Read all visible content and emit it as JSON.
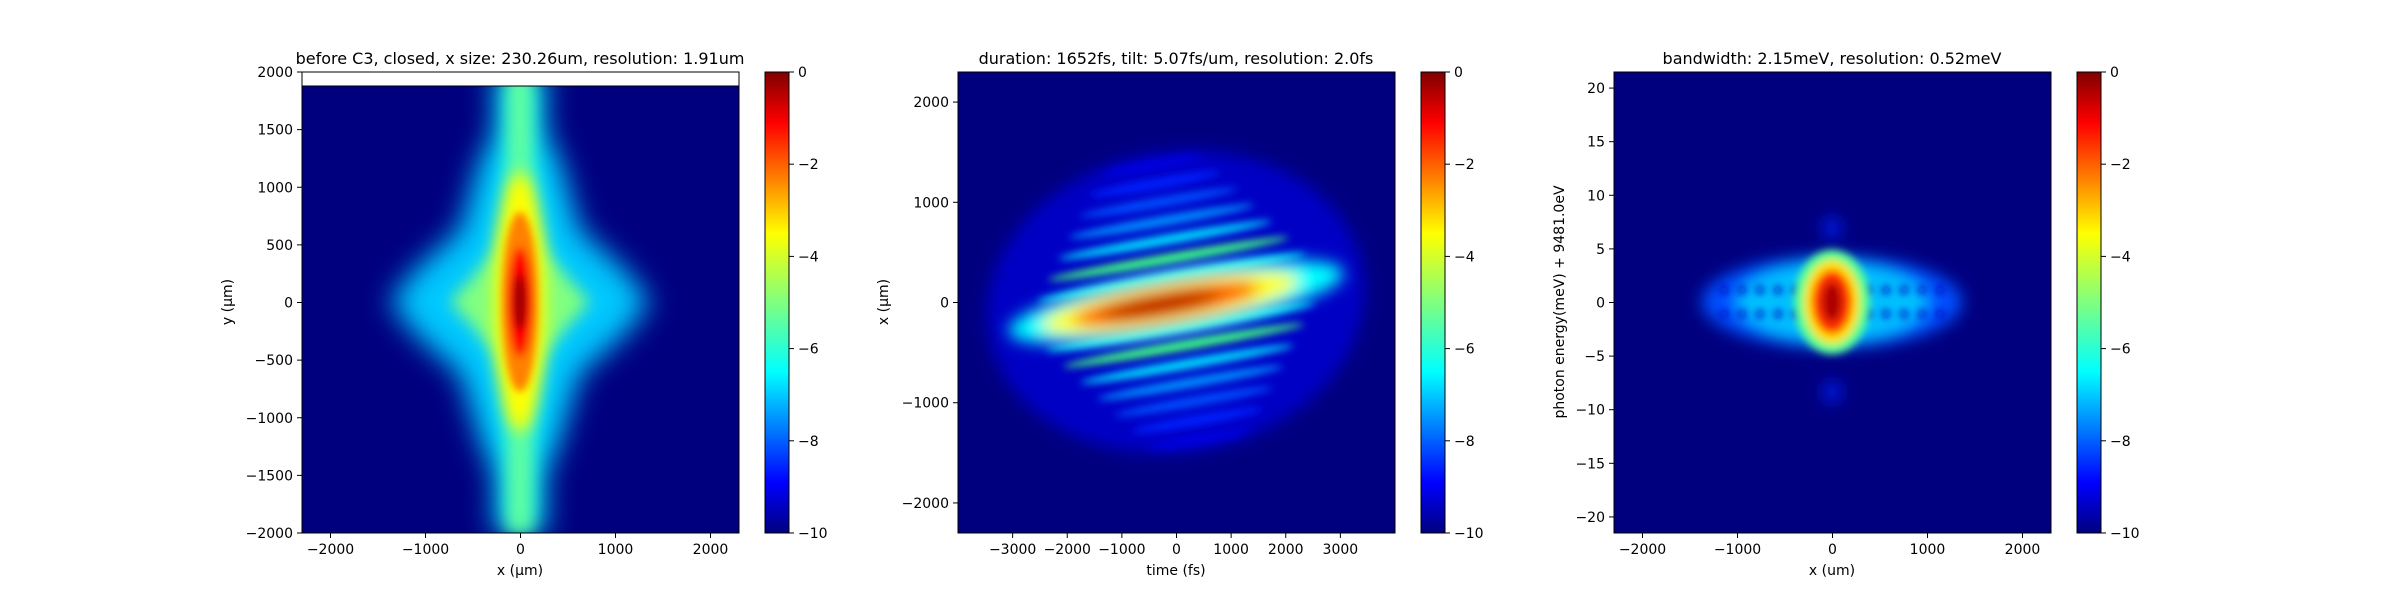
{
  "chart_data": [
    {
      "type": "heatmap",
      "id": "panel1",
      "title": "before C3, closed, x size: 230.26um, resolution: 1.91um",
      "xlabel": "x (μm)",
      "ylabel": "y (μm)",
      "xlim": [
        -2300,
        2300
      ],
      "ylim": [
        -2000,
        2000
      ],
      "x_ticks": [
        -2000,
        -1000,
        0,
        1000,
        2000
      ],
      "x_tick_labels": [
        "−2000",
        "−1000",
        "0",
        "1000",
        "2000"
      ],
      "y_ticks": [
        -2000,
        -1500,
        -1000,
        -500,
        0,
        500,
        1000,
        1500,
        2000
      ],
      "y_tick_labels": [
        "−2000",
        "−1500",
        "−1000",
        "−500",
        "0",
        "500",
        "1000",
        "1500",
        "2000"
      ],
      "colorbar": {
        "range": [
          -10,
          0
        ],
        "ticks": [
          0,
          -2,
          -4,
          -6,
          -8,
          -10
        ],
        "tick_labels": [
          "0",
          "−2",
          "−4",
          "−6",
          "−8",
          "−10"
        ],
        "colormap": "jet"
      },
      "data_extent_y_top": 1880,
      "description": "log intensity map: vertical bright stripe at x=0, diamond-shaped halo reaching |x|~1400 at y=0"
    },
    {
      "type": "heatmap",
      "id": "panel2",
      "title": "duration: 1652fs, tilt: 5.07fs/um, resolution: 2.0fs",
      "xlabel": "time (fs)",
      "ylabel": "x (μm)",
      "xlim": [
        -4000,
        4000
      ],
      "ylim": [
        -2300,
        2300
      ],
      "x_ticks": [
        -3000,
        -2000,
        -1000,
        0,
        1000,
        2000,
        3000
      ],
      "x_tick_labels": [
        "−3000",
        "−2000",
        "−1000",
        "0",
        "1000",
        "2000",
        "3000"
      ],
      "y_ticks": [
        -2000,
        -1000,
        0,
        1000,
        2000
      ],
      "y_tick_labels": [
        "−2000",
        "−1000",
        "0",
        "1000",
        "2000"
      ],
      "colorbar": {
        "range": [
          -10,
          0
        ],
        "ticks": [
          0,
          -2,
          -4,
          -6,
          -8,
          -10
        ],
        "tick_labels": [
          "0",
          "−2",
          "−4",
          "−6",
          "−8",
          "−10"
        ],
        "colormap": "jet"
      },
      "description": "tilted elliptical pulse with parallel fringes, tilt ~5.07 fs/um"
    },
    {
      "type": "heatmap",
      "id": "panel3",
      "title": "bandwidth: 2.15meV, resolution: 0.52meV",
      "xlabel": "x (um)",
      "ylabel": "photon energy(meV) + 9481.0eV",
      "xlim": [
        -2300,
        2300
      ],
      "ylim": [
        -21.5,
        21.5
      ],
      "x_ticks": [
        -2000,
        -1000,
        0,
        1000,
        2000
      ],
      "x_tick_labels": [
        "−2000",
        "−1000",
        "0",
        "1000",
        "2000"
      ],
      "y_ticks": [
        -20,
        -15,
        -10,
        -5,
        0,
        5,
        10,
        15,
        20
      ],
      "y_tick_labels": [
        "−20",
        "−15",
        "−10",
        "−5",
        "0",
        "5",
        "10",
        "15",
        "20"
      ],
      "colorbar": {
        "range": [
          -10,
          0
        ],
        "ticks": [
          0,
          -2,
          -4,
          -6,
          -8,
          -10
        ],
        "tick_labels": [
          "0",
          "−2",
          "−4",
          "−6",
          "−8",
          "−10"
        ],
        "colormap": "jet"
      },
      "description": "compact spectral spot centered at (0,0), wider lobes to |x|~1400 with dotted fringe rows"
    }
  ]
}
